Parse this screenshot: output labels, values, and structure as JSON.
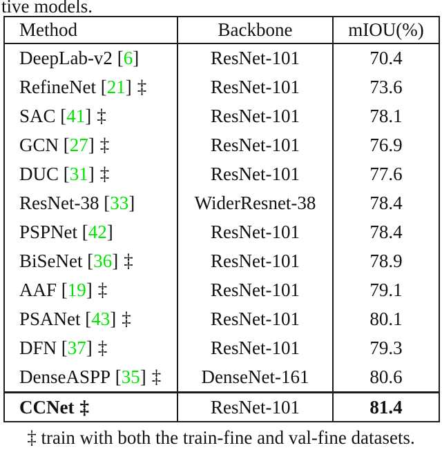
{
  "page": {
    "top_fragment": "tive models.",
    "footnote": "‡ train with both the train-fine and val-fine datasets."
  },
  "table": {
    "headers": [
      "Method",
      "Backbone",
      "mIOU(%)"
    ],
    "citation_brackets": [
      "[",
      "]"
    ],
    "dagger_symbol": "‡",
    "rows": [
      {
        "method": "DeepLab-v2",
        "cite": "6",
        "dagger": "",
        "backbone": "ResNet-101",
        "miou": "70.4",
        "bold": false
      },
      {
        "method": "RefineNet",
        "cite": "21",
        "dagger": "‡",
        "backbone": "ResNet-101",
        "miou": "73.6",
        "bold": false
      },
      {
        "method": "SAC",
        "cite": "41",
        "dagger": "‡",
        "backbone": "ResNet-101",
        "miou": "78.1",
        "bold": false
      },
      {
        "method": "GCN",
        "cite": "27",
        "dagger": "‡",
        "backbone": "ResNet-101",
        "miou": "76.9",
        "bold": false
      },
      {
        "method": "DUC",
        "cite": "31",
        "dagger": "‡",
        "backbone": "ResNet-101",
        "miou": "77.6",
        "bold": false
      },
      {
        "method": "ResNet-38",
        "cite": "33",
        "dagger": "",
        "backbone": "WiderResnet-38",
        "miou": "78.4",
        "bold": false
      },
      {
        "method": "PSPNet",
        "cite": "42",
        "dagger": "",
        "backbone": "ResNet-101",
        "miou": "78.4",
        "bold": false
      },
      {
        "method": "BiSeNet",
        "cite": "36",
        "dagger": "‡",
        "backbone": "ResNet-101",
        "miou": "78.9",
        "bold": false
      },
      {
        "method": "AAF",
        "cite": "19",
        "dagger": "‡",
        "backbone": "ResNet-101",
        "miou": "79.1",
        "bold": false
      },
      {
        "method": "PSANet",
        "cite": "43",
        "dagger": "‡",
        "backbone": "ResNet-101",
        "miou": "80.1",
        "bold": false
      },
      {
        "method": "DFN",
        "cite": "37",
        "dagger": "‡",
        "backbone": "ResNet-101",
        "miou": "79.3",
        "bold": false
      },
      {
        "method": "DenseASPP",
        "cite": "35",
        "dagger": "‡",
        "backbone": "DenseNet-161",
        "miou": "80.6",
        "bold": false
      }
    ],
    "final_row": {
      "method": "CCNet",
      "cite": "",
      "dagger": "‡",
      "backbone": "ResNet-101",
      "miou": "81.4",
      "bold": true
    },
    "colors": {
      "citation_green": "#00e400",
      "text": "#111111",
      "border": "#1c1c1c",
      "background": "#ffffff"
    }
  }
}
